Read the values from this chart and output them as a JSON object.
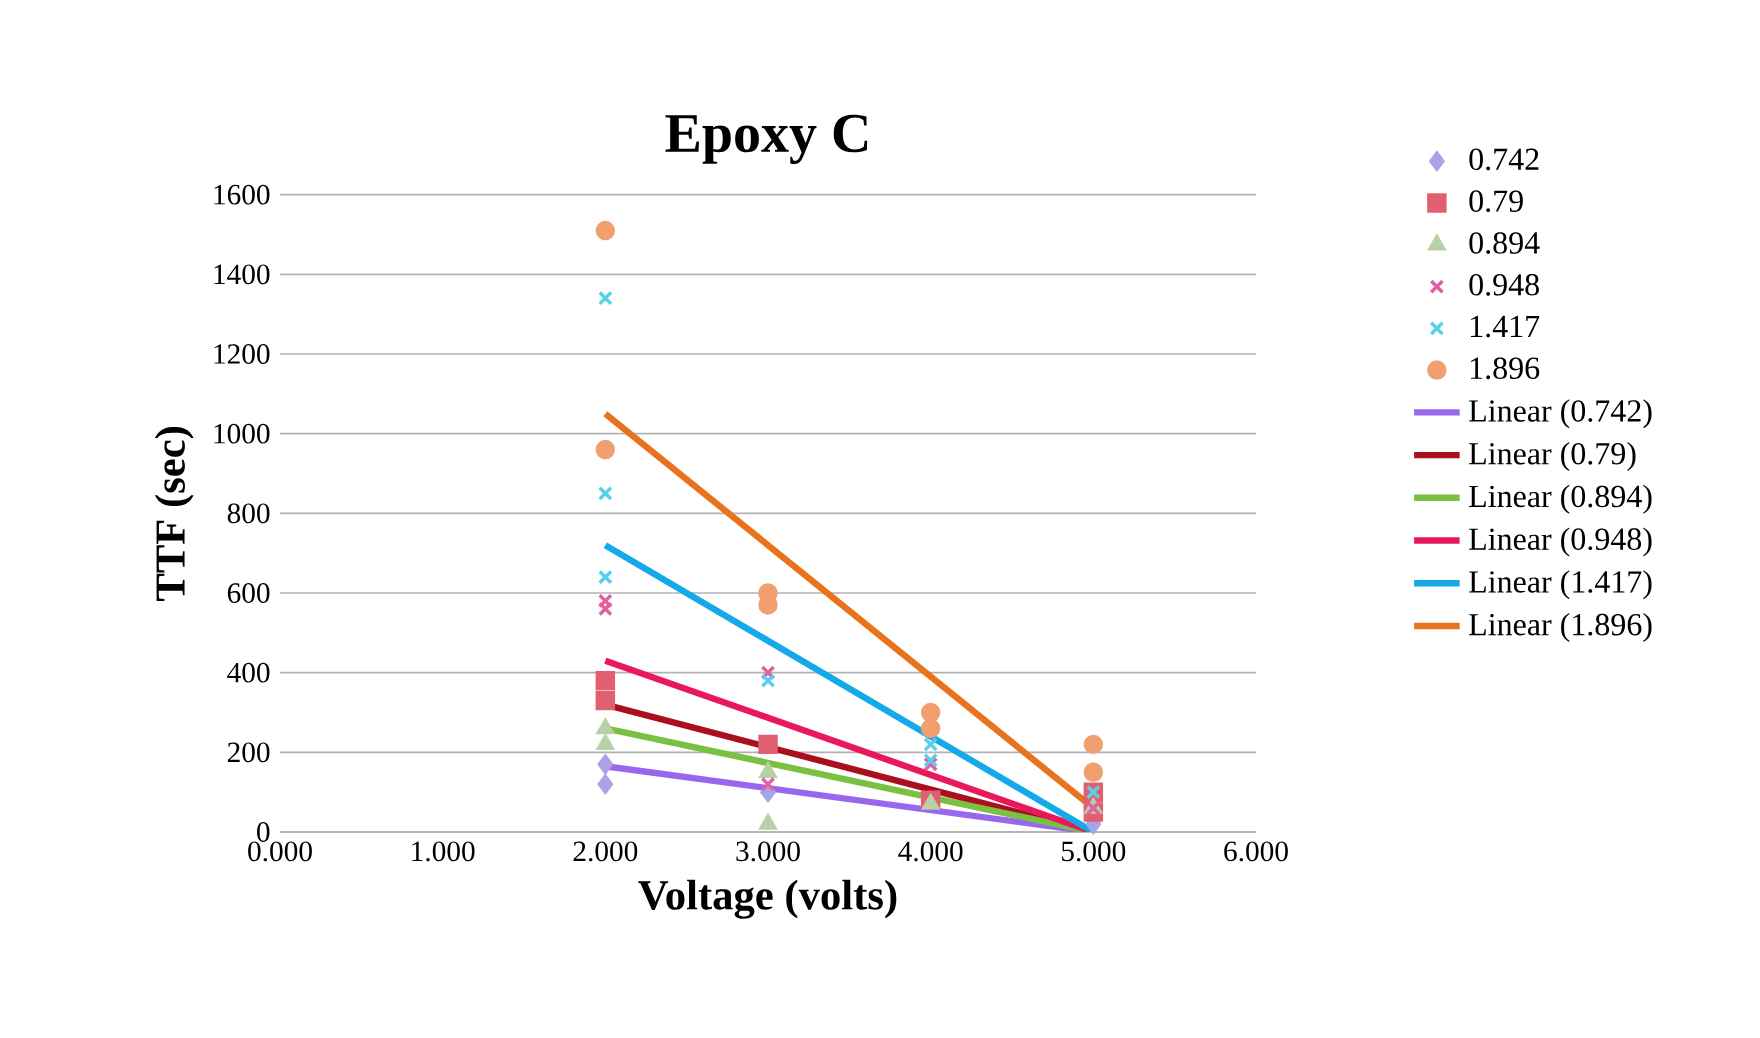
{
  "chart_data": {
    "type": "scatter",
    "title": "Epoxy C",
    "xlabel": "Voltage (volts)",
    "ylabel": "TTF (sec)",
    "xlim": [
      0,
      6
    ],
    "ylim": [
      0,
      1600
    ],
    "xticks": [
      {
        "value": 0,
        "label": "0.000"
      },
      {
        "value": 1,
        "label": "1.000"
      },
      {
        "value": 2,
        "label": "2.000"
      },
      {
        "value": 3,
        "label": "3.000"
      },
      {
        "value": 4,
        "label": "4.000"
      },
      {
        "value": 5,
        "label": "5.000"
      },
      {
        "value": 6,
        "label": "6.000"
      }
    ],
    "yticks": [
      0,
      200,
      400,
      600,
      800,
      1000,
      1200,
      1400,
      1600
    ],
    "grid": "y",
    "legend": "right",
    "series": [
      {
        "name": "0.742",
        "marker": "diamond",
        "color": "#a9a3e8",
        "x": [
          2,
          2,
          3,
          5
        ],
        "values": [
          120,
          170,
          100,
          20
        ]
      },
      {
        "name": "0.79",
        "marker": "square",
        "color": "#e06070",
        "x": [
          2,
          2,
          3,
          4,
          5,
          5
        ],
        "values": [
          330,
          380,
          220,
          80,
          50,
          100
        ]
      },
      {
        "name": "0.894",
        "marker": "triangle",
        "color": "#b8d0a8",
        "x": [
          2,
          2,
          3,
          3,
          4,
          5
        ],
        "values": [
          220,
          260,
          20,
          150,
          70,
          60
        ]
      },
      {
        "name": "0.948",
        "marker": "cross",
        "color": "#e060a0",
        "x": [
          2,
          2,
          3,
          3,
          4,
          5
        ],
        "values": [
          560,
          580,
          400,
          120,
          170,
          60
        ]
      },
      {
        "name": "1.417",
        "marker": "cross",
        "color": "#5ad0e8",
        "x": [
          2,
          2,
          2,
          3,
          4,
          4,
          5
        ],
        "values": [
          1340,
          850,
          640,
          380,
          220,
          180,
          100
        ]
      },
      {
        "name": "1.896",
        "marker": "circle",
        "color": "#f0a070",
        "x": [
          2,
          2,
          3,
          3,
          4,
          4,
          5,
          5
        ],
        "values": [
          1510,
          960,
          600,
          570,
          300,
          260,
          220,
          150
        ]
      },
      {
        "name": "Linear (0.742)",
        "type": "line",
        "color": "#9966ee",
        "x": [
          2,
          5
        ],
        "values": [
          165,
          0
        ]
      },
      {
        "name": "Linear (0.79)",
        "type": "line",
        "color": "#aa0f1e",
        "x": [
          2,
          5
        ],
        "values": [
          320,
          0
        ]
      },
      {
        "name": "Linear (0.894)",
        "type": "line",
        "color": "#7ac143",
        "x": [
          2,
          5
        ],
        "values": [
          260,
          0
        ]
      },
      {
        "name": "Linear (0.948)",
        "type": "line",
        "color": "#e8185a",
        "x": [
          2,
          5
        ],
        "values": [
          430,
          0
        ]
      },
      {
        "name": "Linear (1.417)",
        "type": "line",
        "color": "#14a9e8",
        "x": [
          2,
          5
        ],
        "values": [
          720,
          0
        ]
      },
      {
        "name": "Linear (1.896)",
        "type": "line",
        "color": "#e8731c",
        "x": [
          2,
          5
        ],
        "values": [
          1050,
          60
        ]
      }
    ]
  }
}
